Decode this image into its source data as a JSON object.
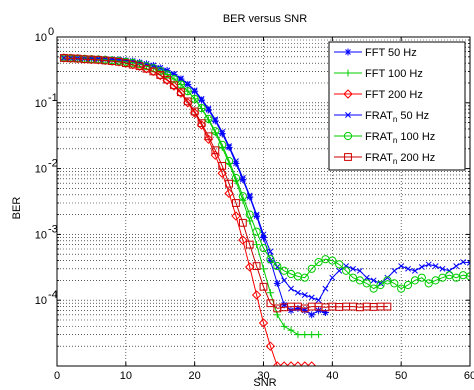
{
  "chart_data": {
    "type": "line",
    "title": "BER versus SNR",
    "xlabel": "SNR",
    "ylabel": "BER",
    "xlim": [
      0,
      60
    ],
    "ylim": [
      1e-05,
      1
    ],
    "yscale": "log",
    "grid": true,
    "legend_position": "top-right",
    "x_ticks": [
      {
        "value": 0,
        "label": "0"
      },
      {
        "value": 10,
        "label": "10"
      },
      {
        "value": 20,
        "label": "20"
      },
      {
        "value": 30,
        "label": "30"
      },
      {
        "value": 40,
        "label": "40"
      },
      {
        "value": 50,
        "label": "50"
      },
      {
        "value": 60,
        "label": "60"
      }
    ],
    "y_ticks": [
      {
        "value": 1,
        "base": "10",
        "exp": "0"
      },
      {
        "value": 0.1,
        "base": "10",
        "exp": "-1"
      },
      {
        "value": 0.01,
        "base": "10",
        "exp": "-2"
      },
      {
        "value": 0.001,
        "base": "10",
        "exp": "-3"
      },
      {
        "value": 0.0001,
        "base": "10",
        "exp": "-4"
      }
    ],
    "series": [
      {
        "name": "FFT 50 Hz",
        "label_main": "FFT 50 Hz",
        "label_sub": "",
        "label_tail": "",
        "color": "#0000ff",
        "marker": "star",
        "x": [
          1,
          2,
          3,
          4,
          5,
          6,
          7,
          8,
          9,
          10,
          11,
          12,
          13,
          14,
          15,
          16,
          17,
          18,
          19,
          20,
          21,
          22,
          23,
          24,
          25,
          26,
          27,
          28,
          29,
          30,
          31,
          32,
          33,
          34,
          35,
          36,
          37,
          38,
          39
        ],
        "y": [
          0.48,
          0.48,
          0.475,
          0.47,
          0.47,
          0.465,
          0.46,
          0.455,
          0.45,
          0.44,
          0.43,
          0.41,
          0.39,
          0.37,
          0.34,
          0.31,
          0.27,
          0.23,
          0.19,
          0.15,
          0.11,
          0.078,
          0.053,
          0.034,
          0.021,
          0.012,
          0.0068,
          0.0037,
          0.0019,
          0.0009,
          0.0004,
          0.00018,
          8.5e-05,
          7e-05,
          7.5e-05,
          7e-05,
          6e-05,
          7e-05,
          6.5e-05
        ]
      },
      {
        "name": "FFT 100 Hz",
        "label_main": "FFT 100 Hz",
        "label_sub": "",
        "label_tail": "",
        "color": "#00cc00",
        "marker": "plus",
        "x": [
          1,
          2,
          3,
          4,
          5,
          6,
          7,
          8,
          9,
          10,
          11,
          12,
          13,
          14,
          15,
          16,
          17,
          18,
          19,
          20,
          21,
          22,
          23,
          24,
          25,
          26,
          27,
          28,
          29,
          30,
          31,
          32,
          33,
          34,
          35,
          36,
          37,
          38
        ],
        "y": [
          0.48,
          0.475,
          0.47,
          0.465,
          0.46,
          0.455,
          0.45,
          0.44,
          0.43,
          0.42,
          0.405,
          0.385,
          0.36,
          0.335,
          0.305,
          0.27,
          0.23,
          0.19,
          0.15,
          0.115,
          0.082,
          0.055,
          0.035,
          0.021,
          0.012,
          0.0065,
          0.0033,
          0.0016,
          0.0007,
          0.0003,
          0.00013,
          6e-05,
          4e-05,
          3.5e-05,
          3e-05,
          3e-05,
          3e-05,
          3e-05
        ]
      },
      {
        "name": "FFT 200 Hz",
        "label_main": "FFT 200 Hz",
        "label_sub": "",
        "label_tail": "",
        "color": "#ff0000",
        "marker": "diamond",
        "x": [
          1,
          2,
          3,
          4,
          5,
          6,
          7,
          8,
          9,
          10,
          11,
          12,
          13,
          14,
          15,
          16,
          17,
          18,
          19,
          20,
          21,
          22,
          23,
          24,
          25,
          26,
          27,
          28,
          29,
          30,
          31,
          32,
          33,
          34,
          35,
          36,
          37
        ],
        "y": [
          0.48,
          0.475,
          0.47,
          0.46,
          0.455,
          0.45,
          0.44,
          0.43,
          0.42,
          0.4,
          0.38,
          0.36,
          0.33,
          0.3,
          0.26,
          0.22,
          0.18,
          0.14,
          0.1,
          0.07,
          0.046,
          0.028,
          0.016,
          0.0085,
          0.0042,
          0.0019,
          0.00082,
          0.00032,
          0.00012,
          4.5e-05,
          2e-05,
          1e-05,
          1e-05,
          1e-05,
          1e-05,
          1e-05,
          1e-05
        ]
      },
      {
        "name": "FRAT_n 50 Hz",
        "label_main": "FRAT",
        "label_sub": "n",
        "label_tail": " 50 Hz",
        "color": "#0000ff",
        "marker": "x",
        "x": [
          1,
          2,
          3,
          4,
          5,
          6,
          7,
          8,
          9,
          10,
          11,
          12,
          13,
          14,
          15,
          16,
          17,
          18,
          19,
          20,
          21,
          22,
          23,
          24,
          25,
          26,
          27,
          28,
          29,
          30,
          31,
          32,
          33,
          34,
          35,
          36,
          37,
          38,
          39,
          40,
          41,
          42,
          43,
          44,
          45,
          46,
          47,
          48,
          49,
          50,
          51,
          52,
          53,
          54,
          55,
          56,
          57,
          58,
          59,
          60
        ],
        "y": [
          0.48,
          0.48,
          0.475,
          0.47,
          0.47,
          0.465,
          0.46,
          0.455,
          0.45,
          0.44,
          0.43,
          0.41,
          0.39,
          0.37,
          0.34,
          0.31,
          0.275,
          0.235,
          0.195,
          0.155,
          0.115,
          0.082,
          0.056,
          0.036,
          0.022,
          0.013,
          0.0072,
          0.0039,
          0.002,
          0.001,
          0.00055,
          0.00032,
          0.0002,
          0.00015,
          0.00013,
          0.00012,
          0.00011,
          0.0001,
          0.00015,
          0.00022,
          0.00028,
          0.00033,
          0.0003,
          0.00028,
          0.00022,
          0.0002,
          0.00018,
          0.00022,
          0.00028,
          0.00033,
          0.0003,
          0.00028,
          0.00032,
          0.00035,
          0.00033,
          0.0003,
          0.00028,
          0.00033,
          0.00038,
          0.00037
        ]
      },
      {
        "name": "FRAT_n 100 Hz",
        "label_main": "FRAT",
        "label_sub": "n",
        "label_tail": " 100 Hz",
        "color": "#00cc00",
        "marker": "circle",
        "x": [
          1,
          2,
          3,
          4,
          5,
          6,
          7,
          8,
          9,
          10,
          11,
          12,
          13,
          14,
          15,
          16,
          17,
          18,
          19,
          20,
          21,
          22,
          23,
          24,
          25,
          26,
          27,
          28,
          29,
          30,
          31,
          32,
          33,
          34,
          35,
          36,
          37,
          38,
          39,
          40,
          41,
          42,
          43,
          44,
          45,
          46,
          47,
          48,
          49,
          50,
          51,
          52,
          53,
          54,
          55,
          56,
          57,
          58,
          59,
          60
        ],
        "y": [
          0.48,
          0.475,
          0.47,
          0.465,
          0.46,
          0.455,
          0.45,
          0.44,
          0.43,
          0.42,
          0.405,
          0.385,
          0.36,
          0.335,
          0.305,
          0.27,
          0.23,
          0.19,
          0.15,
          0.115,
          0.083,
          0.057,
          0.037,
          0.023,
          0.013,
          0.0072,
          0.0038,
          0.002,
          0.0011,
          0.00062,
          0.00042,
          0.00033,
          0.00028,
          0.00025,
          0.00023,
          0.00022,
          0.0003,
          0.00038,
          0.00042,
          0.0004,
          0.00035,
          0.00028,
          0.00022,
          0.0002,
          0.00018,
          0.00015,
          0.00017,
          0.0002,
          0.00018,
          0.00015,
          0.00017,
          0.0002,
          0.00022,
          0.00018,
          0.0002,
          0.00022,
          0.00024,
          0.00022,
          0.00024,
          0.00023
        ]
      },
      {
        "name": "FRAT_n 200 Hz",
        "label_main": "FRAT",
        "label_sub": "n",
        "label_tail": " 200 Hz",
        "color": "#cc0000",
        "marker": "square",
        "x": [
          1,
          2,
          3,
          4,
          5,
          6,
          7,
          8,
          9,
          10,
          11,
          12,
          13,
          14,
          15,
          16,
          17,
          18,
          19,
          20,
          21,
          22,
          23,
          24,
          25,
          26,
          27,
          28,
          29,
          30,
          31,
          32,
          33,
          34,
          35,
          36,
          37,
          38,
          39,
          40,
          41,
          42,
          43,
          44,
          45,
          46,
          47,
          48
        ],
        "y": [
          0.48,
          0.475,
          0.47,
          0.46,
          0.455,
          0.45,
          0.44,
          0.43,
          0.42,
          0.4,
          0.38,
          0.36,
          0.33,
          0.3,
          0.265,
          0.225,
          0.185,
          0.145,
          0.105,
          0.074,
          0.049,
          0.031,
          0.019,
          0.011,
          0.0059,
          0.003,
          0.0015,
          0.0007,
          0.00033,
          0.00016,
          9e-05,
          7.5e-05,
          7.8e-05,
          8e-05,
          8e-05,
          7.5e-05,
          8e-05,
          8e-05,
          7.8e-05,
          8e-05,
          7.9e-05,
          8e-05,
          8e-05,
          7.8e-05,
          8e-05,
          7.9e-05,
          8e-05,
          8e-05
        ]
      }
    ]
  }
}
